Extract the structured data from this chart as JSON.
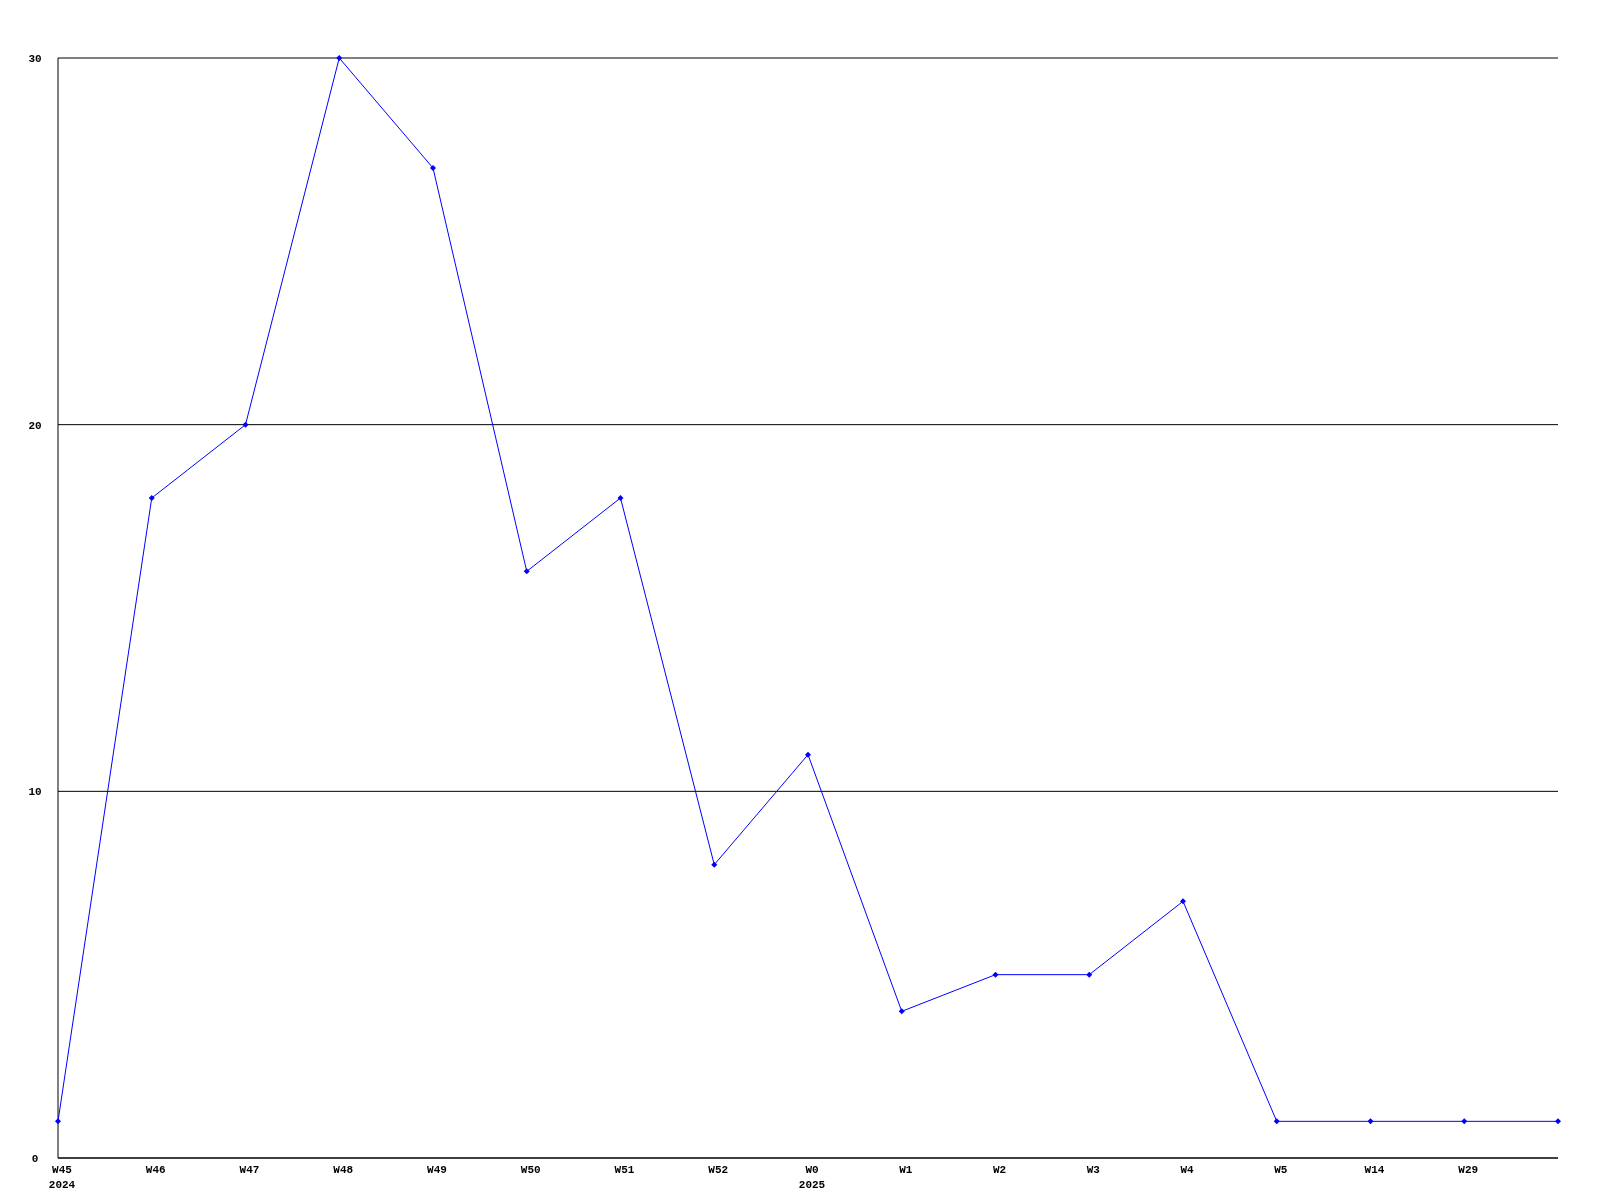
{
  "chart_data": {
    "type": "line",
    "categories": [
      "W45\n2024",
      "W46",
      "W47",
      "W48",
      "W49",
      "W50",
      "W51",
      "W52",
      "W0\n2025",
      "W1",
      "W2",
      "W3",
      "W4",
      "W5",
      "W14",
      "W29",
      null
    ],
    "series": [
      {
        "color": "#0000ff",
        "values": [
          1,
          18,
          20,
          30,
          27,
          16,
          18,
          8,
          11,
          4,
          5,
          5,
          7,
          1,
          1,
          1,
          1
        ]
      }
    ],
    "ylim": [
      0,
      30
    ],
    "yticks": [
      0,
      10,
      20,
      30
    ],
    "grid": "y",
    "marker": "diamond",
    "line_style": "solid"
  }
}
